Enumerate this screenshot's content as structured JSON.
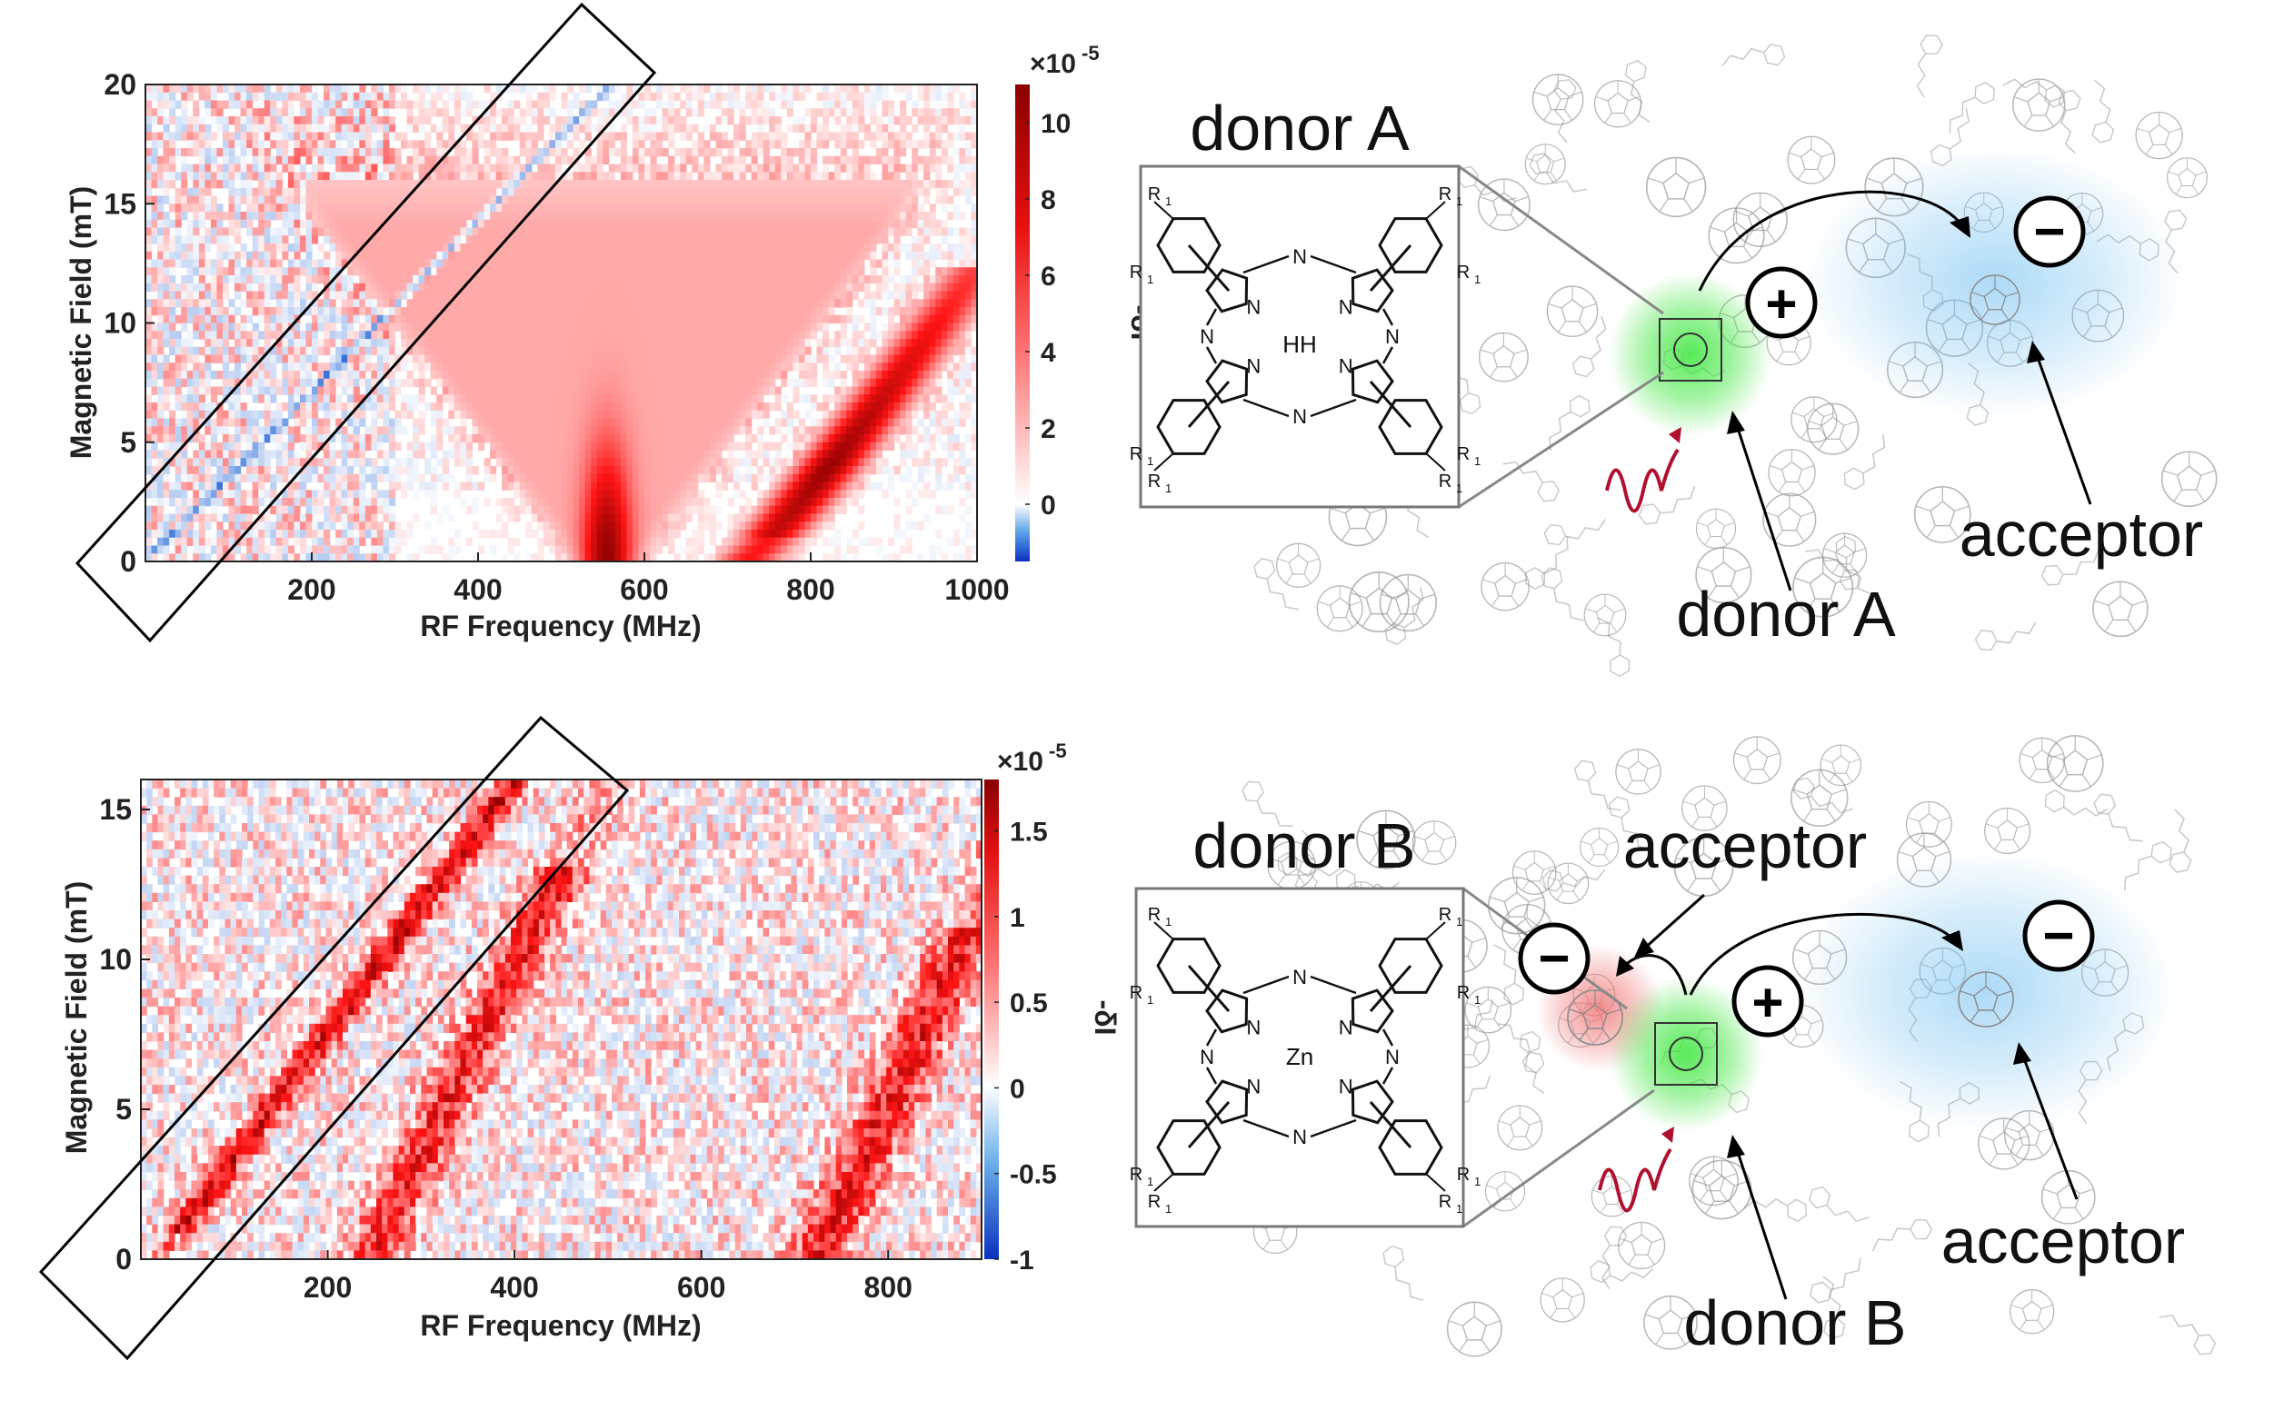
{
  "colors": {
    "positive": "#d40000",
    "negative": "#0a57c9",
    "frame": "#000000",
    "donor_glow": "#39e639",
    "acceptor_glow": "#6bbcf0",
    "acceptor_b_glow": "#f07070",
    "light_wave": "#b0102e"
  },
  "chart_data": [
    {
      "id": "top",
      "type": "heatmap",
      "xlabel": "RF Frequency (MHz)",
      "ylabel": "Magnetic Field (mT)",
      "xlim": [
        0,
        1000
      ],
      "ylim": [
        0,
        20
      ],
      "xticks": [
        "200",
        "400",
        "600",
        "800",
        "1000"
      ],
      "xtick_values": [
        200,
        400,
        600,
        800,
        1000
      ],
      "yticks": [
        "0",
        "5",
        "10",
        "15",
        "20"
      ],
      "ytick_values": [
        0,
        5,
        10,
        15,
        20
      ],
      "colorbar": {
        "label": "-δI",
        "multiplier": "×10",
        "exponent": "-5",
        "ticks": [
          "0",
          "2",
          "4",
          "6",
          "8",
          "10"
        ],
        "tick_values": [
          0,
          2,
          4,
          6,
          8,
          10
        ],
        "min": -1.5,
        "max": 11
      },
      "features": [
        {
          "name": "half-field resonance (negative, diagonal)",
          "sign": "negative",
          "slope_mt_per_mhz": 0.0357,
          "intercept_mhz": 0
        },
        {
          "name": "zero-field split V-shaped signal",
          "sign": "positive",
          "center_mhz": 555
        },
        {
          "name": "main resonance branch",
          "sign": "positive",
          "start_mhz": 730,
          "end_mhz": 1000
        }
      ],
      "highlight_box": "half-field resonance"
    },
    {
      "id": "bottom",
      "type": "heatmap",
      "xlabel": "RF Frequency (MHz)",
      "ylabel": "Magnetic Field (mT)",
      "xlim": [
        0,
        900
      ],
      "ylim": [
        0,
        16
      ],
      "xticks": [
        "200",
        "400",
        "600",
        "800"
      ],
      "xtick_values": [
        200,
        400,
        600,
        800
      ],
      "yticks": [
        "0",
        "5",
        "10",
        "15"
      ],
      "ytick_values": [
        0,
        5,
        10,
        15
      ],
      "colorbar": {
        "label": "-δI",
        "multiplier": "×10",
        "exponent": "-5",
        "ticks": [
          "-1",
          "-0.5",
          "0",
          "0.5",
          "1",
          "1.5"
        ],
        "tick_values": [
          -1,
          -0.5,
          0,
          0.5,
          1,
          1.5
        ],
        "min": -1,
        "max": 1.8
      },
      "features": [
        {
          "name": "half-field resonance (positive, diagonal)",
          "sign": "positive"
        },
        {
          "name": "secondary branch",
          "sign": "positive",
          "start_mhz": 250
        },
        {
          "name": "main resonance branch",
          "sign": "positive",
          "start_mhz": 720
        }
      ],
      "highlight_box": "half-field resonance"
    }
  ],
  "schematic_top": {
    "inset_title": "donor A",
    "bottom_label": "donor A",
    "right_label": "acceptor",
    "plus_sign": "+",
    "minus_sign": "−",
    "molecule": {
      "center": "HH",
      "n": "N",
      "r": "R",
      "r_sub": "1"
    }
  },
  "schematic_bottom": {
    "inset_title": "donor B",
    "bottom_label": "donor B",
    "top_label": "acceptor",
    "right_label": "acceptor",
    "plus_sign": "+",
    "minus_sign_left": "−",
    "minus_sign_right": "−",
    "molecule": {
      "center": "Zn",
      "n": "N",
      "r": "R",
      "r_sub": "1"
    }
  }
}
